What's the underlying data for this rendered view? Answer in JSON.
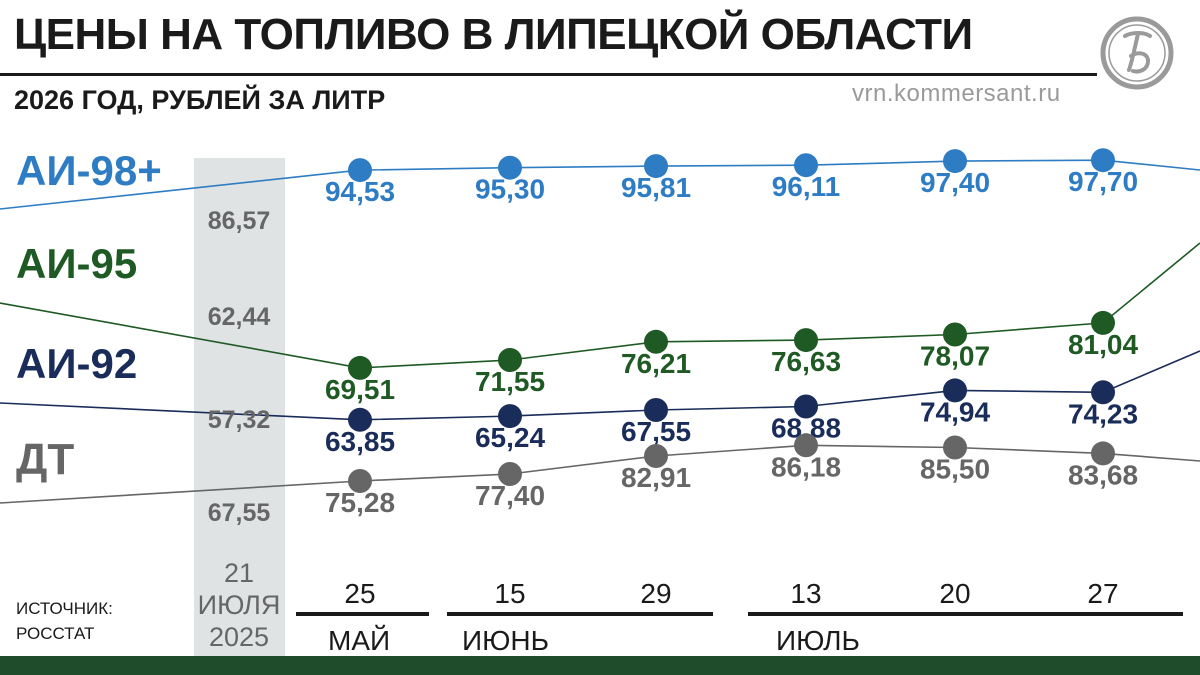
{
  "header": {
    "title": "ЦЕНЫ НА ТОПЛИВО В ЛИПЕЦКОЙ ОБЛАСТИ",
    "subtitle": "2026 ГОД, РУБЛЕЙ ЗА ЛИТР",
    "website": "vrn.kommersant.ru"
  },
  "source": {
    "line1": "ИСТОЧНИК:",
    "line2": "РОССТАТ"
  },
  "colors": {
    "ai98": "#2e7dc4",
    "ai95": "#1f5a24",
    "ai92": "#1a2c5a",
    "dt": "#666666",
    "reference_band": "#dfe3e4",
    "reference_text": "#666666",
    "footer": "#1f4c2b"
  },
  "chart_data": {
    "type": "line",
    "title": "ЦЕНЫ НА ТОПЛИВО В ЛИПЕЦКОЙ ОБЛАСТИ",
    "subtitle": "2026 ГОД, РУБЛЕЙ ЗА ЛИТР",
    "reference": {
      "label": [
        "21",
        "ИЮЛЯ",
        "2025"
      ]
    },
    "x": [
      "25",
      "15",
      "29",
      "13",
      "20",
      "27"
    ],
    "months": [
      {
        "name": "МАЙ",
        "span": [
          0,
          0
        ]
      },
      {
        "name": "ИЮНЬ",
        "span": [
          1,
          2
        ]
      },
      {
        "name": "ИЮЛЬ",
        "span": [
          3,
          5
        ]
      }
    ],
    "series": [
      {
        "name": "АИ-98+",
        "color": "#2e7dc4",
        "reference": "86,57",
        "values": [
          94.53,
          95.3,
          95.81,
          96.11,
          97.4,
          97.7
        ],
        "labels": [
          "94,53",
          "95,30",
          "95,81",
          "96,11",
          "97,40",
          "97,70"
        ]
      },
      {
        "name": "АИ-95",
        "color": "#1f5a24",
        "reference": "62,44",
        "values": [
          69.51,
          71.55,
          76.21,
          76.63,
          78.07,
          81.04
        ],
        "labels": [
          "69,51",
          "71,55",
          "76,21",
          "76,63",
          "78,07",
          "81,04"
        ]
      },
      {
        "name": "АИ-92",
        "color": "#1a2c5a",
        "reference": "57,32",
        "values": [
          63.85,
          65.24,
          67.55,
          68.88,
          74.94,
          74.23
        ],
        "labels": [
          "63,85",
          "65,24",
          "67,55",
          "68,88",
          "74,94",
          "74,23"
        ]
      },
      {
        "name": "ДТ",
        "color": "#666666",
        "reference": "67,55",
        "values": [
          75.28,
          77.4,
          82.91,
          86.18,
          85.5,
          83.68
        ],
        "labels": [
          "75,28",
          "77,40",
          "82,91",
          "86,18",
          "85,50",
          "83,68"
        ]
      }
    ],
    "grid": false,
    "legend": "left"
  }
}
